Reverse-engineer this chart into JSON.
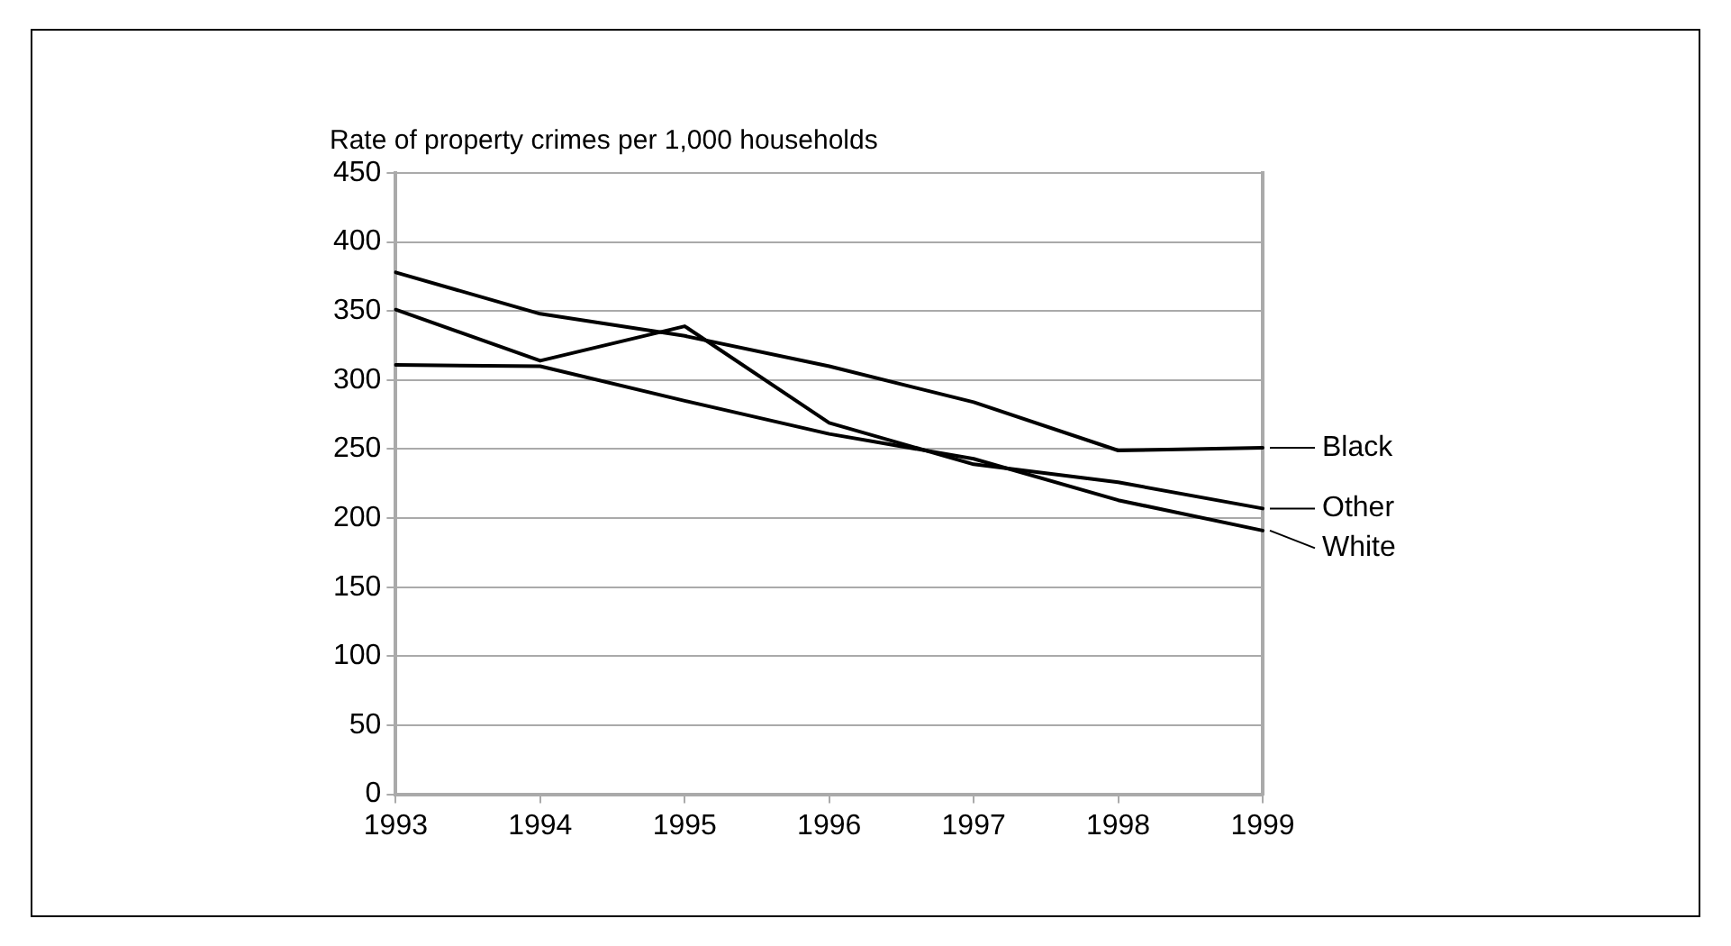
{
  "chart_data": {
    "type": "line",
    "ylabel": "Rate of property crimes per 1,000 households",
    "categories": [
      "1993",
      "1994",
      "1995",
      "1996",
      "1997",
      "1998",
      "1999"
    ],
    "series": [
      {
        "name": "Black",
        "color": "#000000",
        "values": [
          378,
          348,
          332,
          310,
          284,
          249,
          251
        ]
      },
      {
        "name": "Other",
        "color": "#000000",
        "values": [
          351,
          314,
          339,
          269,
          239,
          226,
          207
        ]
      },
      {
        "name": "White",
        "color": "#000000",
        "values": [
          311,
          310,
          285,
          261,
          243,
          213,
          191
        ]
      }
    ],
    "ylim": [
      0,
      450
    ],
    "yticks": [
      0,
      50,
      100,
      150,
      200,
      250,
      300,
      350,
      400,
      450
    ],
    "grid": "y",
    "legend": "right",
    "marker": "none",
    "line_style": "solid"
  }
}
